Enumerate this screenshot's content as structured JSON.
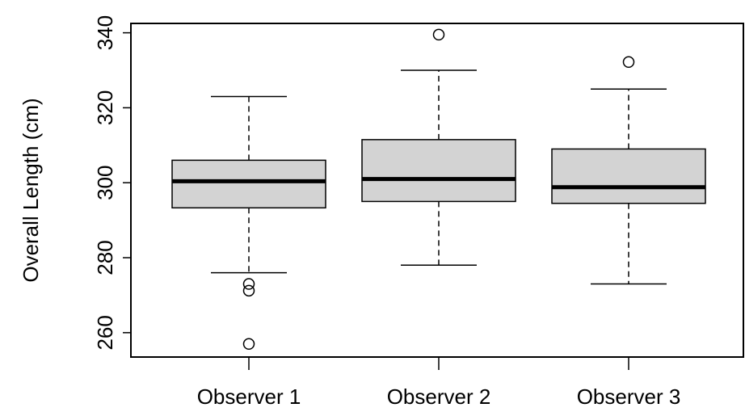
{
  "chart_data": {
    "type": "box",
    "categories": [
      "Observer 1",
      "Observer 2",
      "Observer 3"
    ],
    "ylabel": "Overall Length (cm)",
    "xlabel": "",
    "title": "",
    "ylim": [
      253.5,
      342.5
    ],
    "yticks": [
      260,
      280,
      300,
      320,
      340
    ],
    "grid": false,
    "box_color": "#d3d3d3",
    "line_color": "#000000",
    "boxes": [
      {
        "name": "Observer 1",
        "whisker_low": 276,
        "q1": 293.3,
        "median": 300.4,
        "q3": 306,
        "whisker_high": 323,
        "outliers": [
          273,
          271.2,
          257
        ]
      },
      {
        "name": "Observer 2",
        "whisker_low": 278,
        "q1": 295,
        "median": 301,
        "q3": 311.5,
        "whisker_high": 330,
        "outliers": [
          339.5
        ]
      },
      {
        "name": "Observer 3",
        "whisker_low": 273,
        "q1": 294.5,
        "median": 298.8,
        "q3": 309,
        "whisker_high": 325,
        "outliers": [
          332.2
        ]
      }
    ]
  }
}
